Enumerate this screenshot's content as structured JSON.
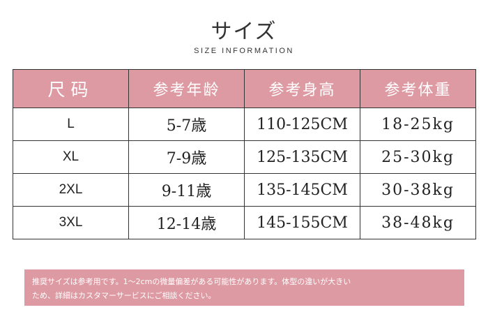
{
  "title": "サイズ",
  "subtitle": "SIZE INFORMATION",
  "table": {
    "headers": [
      "尺码",
      "参考年龄",
      "参考身高",
      "参考体重"
    ],
    "rows": [
      [
        "L",
        "5-7歳",
        "110-125CM",
        "18-25kg"
      ],
      [
        "XL",
        "7-9歳",
        "125-135CM",
        "25-30kg"
      ],
      [
        "2XL",
        "9-11歳",
        "135-145CM",
        "30-38kg"
      ],
      [
        "3XL",
        "12-14歳",
        "145-155CM",
        "38-48kg"
      ]
    ]
  },
  "note": {
    "line1": "推奨サイズは参考用です。1～2cmの微量偏差がある可能性があります。体型の違いが大きい",
    "line2": "ため、詳細はカスタマーサービスにご相談ください。"
  },
  "colors": {
    "accent": "#dd9aa3",
    "border": "#333333"
  }
}
